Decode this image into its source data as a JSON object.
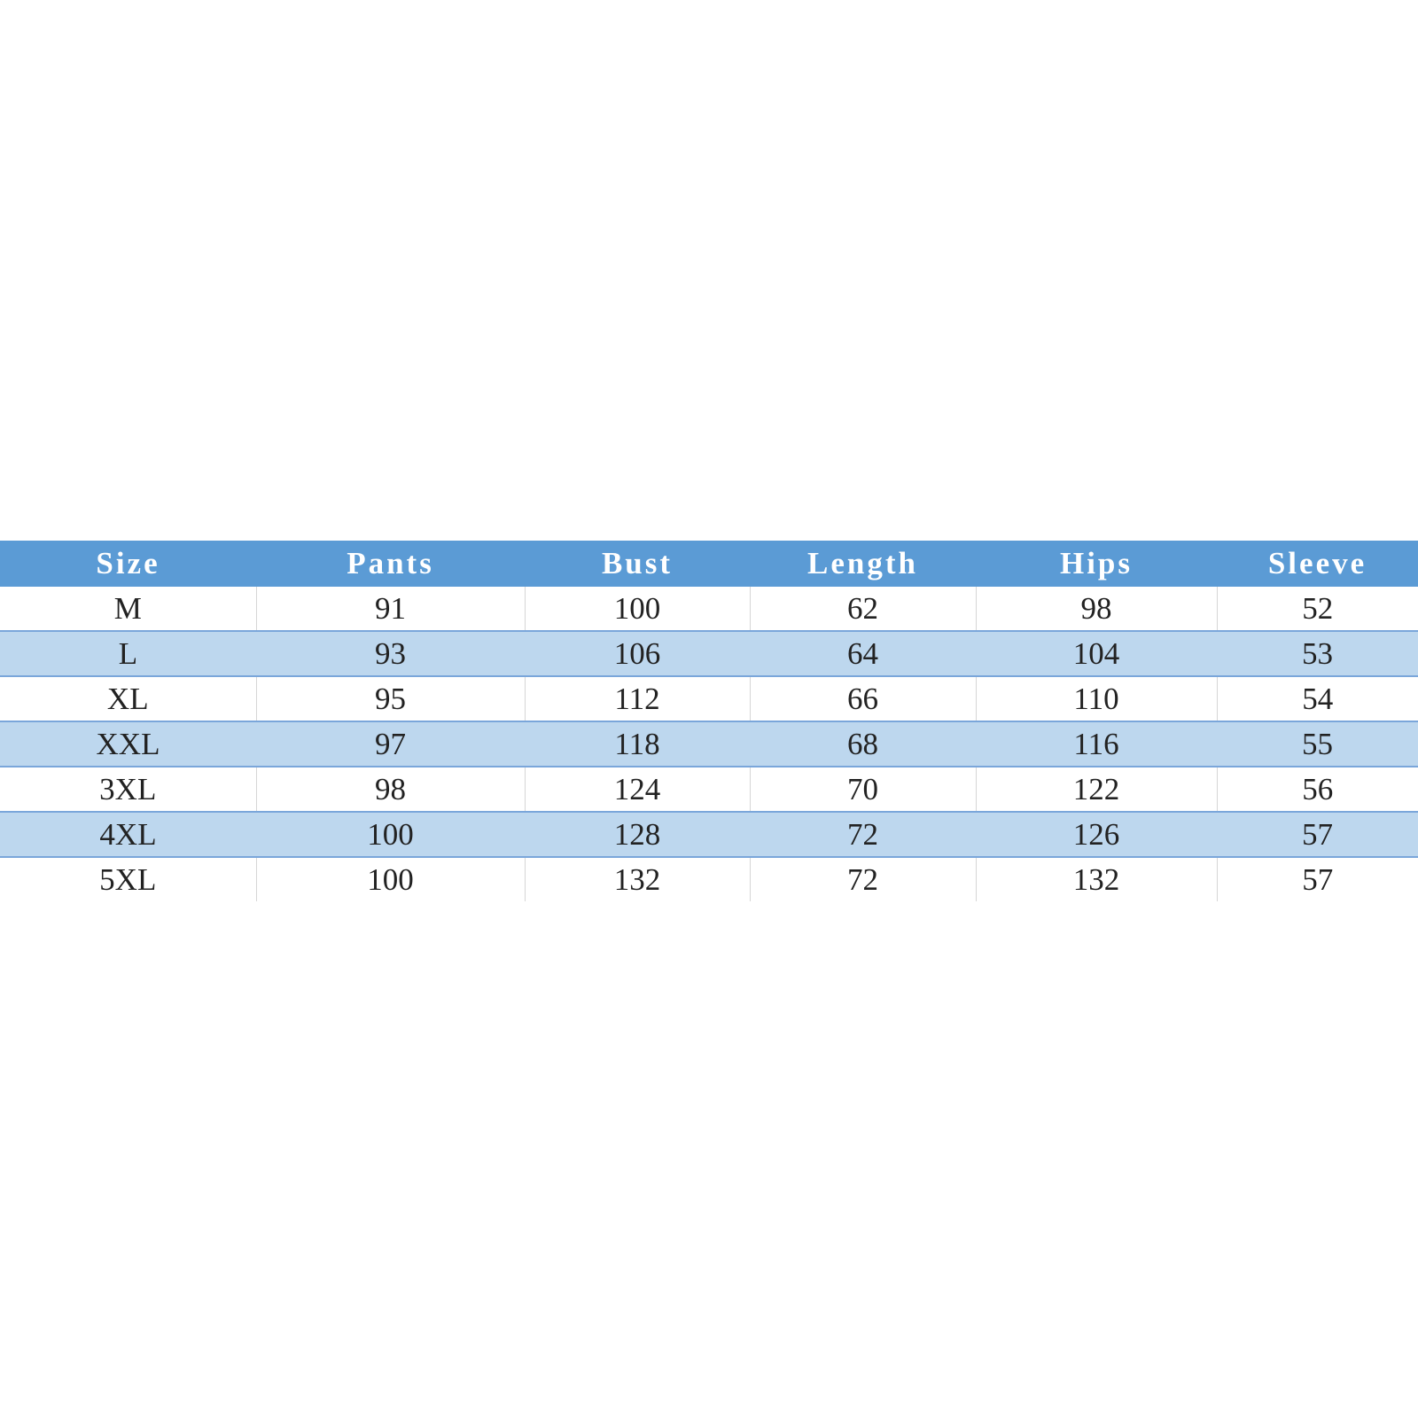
{
  "table": {
    "header": [
      "Size",
      "Pants",
      "Bust",
      "Length",
      "Hips",
      "Sleeve"
    ],
    "rows": [
      [
        "M",
        91,
        100,
        62,
        98,
        52
      ],
      [
        "L",
        93,
        106,
        64,
        104,
        53
      ],
      [
        "XL",
        95,
        112,
        66,
        110,
        54
      ],
      [
        "XXL",
        97,
        118,
        68,
        116,
        55
      ],
      [
        "3XL",
        98,
        124,
        70,
        122,
        56
      ],
      [
        "4XL",
        100,
        128,
        72,
        126,
        57
      ],
      [
        "5XL",
        100,
        132,
        72,
        132,
        57
      ]
    ]
  }
}
